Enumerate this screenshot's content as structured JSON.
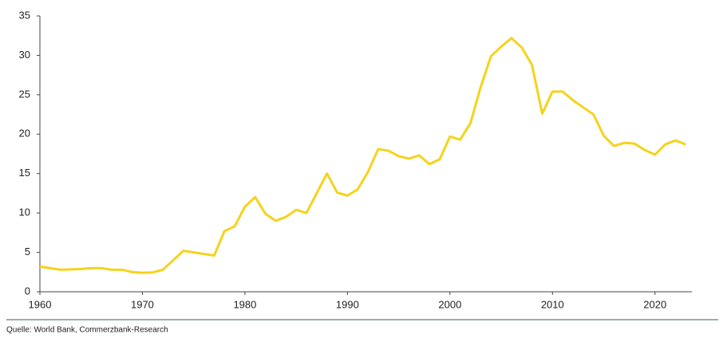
{
  "chart_data": {
    "type": "line",
    "x": [
      1960,
      1961,
      1962,
      1963,
      1964,
      1965,
      1966,
      1967,
      1968,
      1969,
      1970,
      1971,
      1972,
      1973,
      1974,
      1975,
      1976,
      1977,
      1978,
      1979,
      1980,
      1981,
      1982,
      1983,
      1984,
      1985,
      1986,
      1987,
      1988,
      1989,
      1990,
      1991,
      1992,
      1993,
      1994,
      1995,
      1996,
      1997,
      1998,
      1999,
      2000,
      2001,
      2002,
      2003,
      2004,
      2005,
      2006,
      2007,
      2008,
      2009,
      2010,
      2011,
      2012,
      2013,
      2014,
      2015,
      2016,
      2017,
      2018,
      2019,
      2020,
      2021,
      2022,
      2023
    ],
    "series": [
      {
        "color": "#f5d31c",
        "values": [
          3.2,
          3.0,
          2.8,
          2.85,
          2.9,
          3.0,
          3.0,
          2.8,
          2.8,
          2.5,
          2.4,
          2.45,
          2.8,
          4.0,
          5.2,
          5.0,
          4.8,
          4.6,
          7.7,
          8.3,
          10.8,
          12.0,
          9.9,
          9.0,
          9.5,
          10.4,
          10.0,
          12.5,
          15.0,
          12.6,
          12.2,
          13.0,
          15.2,
          18.1,
          17.9,
          17.2,
          16.9,
          17.3,
          16.2,
          16.8,
          19.7,
          19.3,
          21.4,
          26.0,
          29.9,
          31.1,
          32.2,
          31.0,
          28.8,
          22.6,
          25.4,
          25.4,
          24.3,
          23.4,
          22.5,
          19.8,
          18.5,
          18.9,
          18.8,
          18.0,
          17.4,
          18.7,
          19.2,
          18.7
        ]
      }
    ],
    "xlim": [
      1960,
      2023.6
    ],
    "xticks": [
      1960,
      1970,
      1980,
      1990,
      2000,
      2010,
      2020
    ],
    "ylim": [
      0,
      35
    ],
    "yticks": [
      0,
      5,
      10,
      15,
      20,
      25,
      30,
      35
    ],
    "source": "Quelle: World Bank, Commerzbank-Research"
  }
}
